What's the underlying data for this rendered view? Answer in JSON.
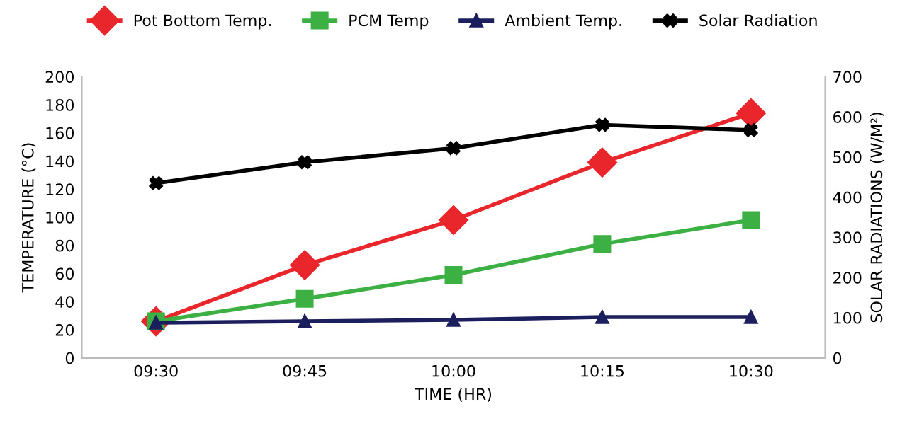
{
  "chart_data": {
    "type": "line",
    "categories": [
      "09:30",
      "09:45",
      "10:00",
      "10:15",
      "10:30"
    ],
    "xlabel": "TIME (HR)",
    "ylabel": "TEMPERATURE (°C)",
    "y2label": "SOLAR RADIATIONS (W/M²)",
    "ylim": [
      0,
      200
    ],
    "yticks": [
      0,
      20,
      40,
      60,
      80,
      100,
      120,
      140,
      160,
      180,
      200
    ],
    "y2lim": [
      0,
      700
    ],
    "y2ticks": [
      0,
      100,
      200,
      300,
      400,
      500,
      600,
      700
    ],
    "grid": false,
    "legend": "top",
    "series": [
      {
        "name": "Pot Bottom Temp.",
        "color": "#e8262b",
        "marker": "diamond",
        "values": [
          26,
          66,
          98,
          139,
          174
        ]
      },
      {
        "name": "PCM Temp",
        "color": "#3cb043",
        "marker": "square",
        "values": [
          26,
          42,
          59,
          81,
          98
        ]
      },
      {
        "name": "Ambient Temp.",
        "color": "#1b1f5e",
        "marker": "triangle",
        "values": [
          25,
          26,
          27,
          29,
          29
        ]
      },
      {
        "name": "Solar Radiation",
        "color": "#000000",
        "marker": "cross",
        "axis": "y2",
        "values": [
          435,
          487,
          522,
          580,
          567
        ]
      }
    ]
  }
}
